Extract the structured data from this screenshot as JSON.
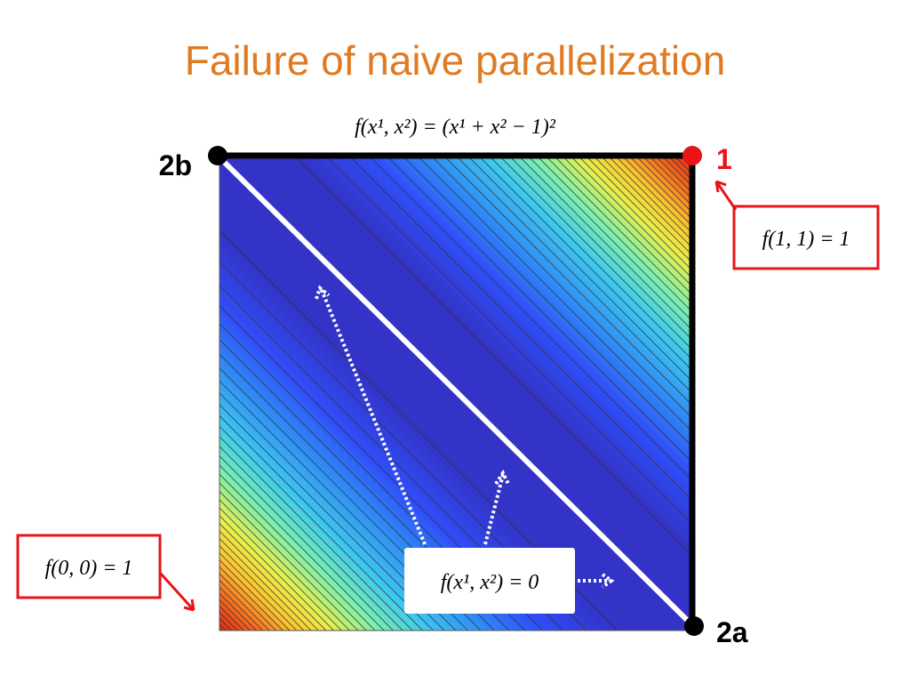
{
  "title": "Failure of naive parallelization",
  "plot_title": "f(x¹, x²) = (x¹ + x² − 1)²",
  "corners": {
    "top_right": "1",
    "top_left": "2b",
    "bottom_right": "2a"
  },
  "callouts": {
    "top_right": "f(1, 1) = 1",
    "bottom_left": "f(0, 0) = 1",
    "center": "f(x¹, x²) = 0"
  }
}
